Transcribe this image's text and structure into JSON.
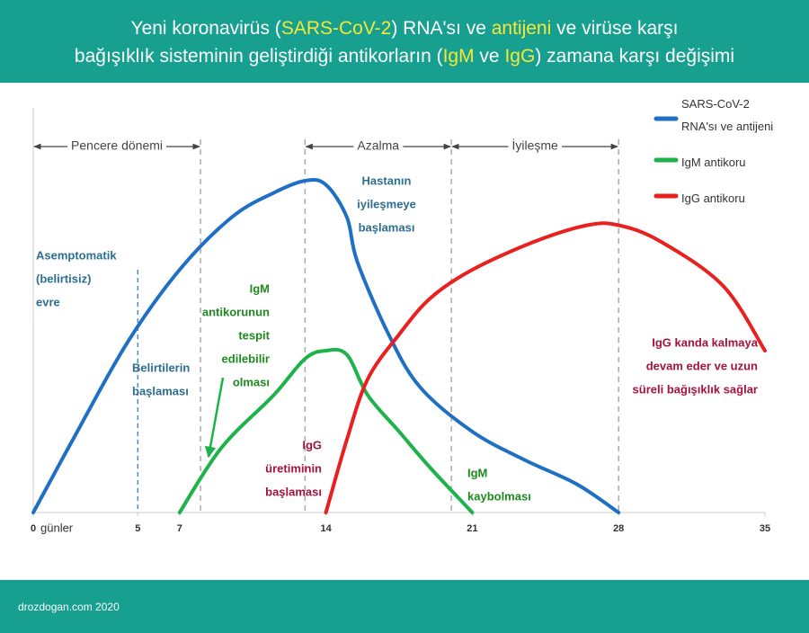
{
  "chart_data": {
    "type": "line",
    "title": {
      "lines": [
        [
          "Yeni koronavirüs (",
          "SARS-CoV-2",
          ") RNA'sı ve ",
          "antijeni",
          " ve virüse karşı"
        ],
        [
          "bağışıklık sisteminin geliştirdiği antikorların (",
          "IgM",
          " ve ",
          "IgG",
          ") zamana karşı değişimi"
        ]
      ]
    },
    "x_label": "günler",
    "xlim": [
      0,
      35
    ],
    "xticks": [
      0,
      5,
      7,
      14,
      21,
      28,
      35
    ],
    "ylim": [
      0,
      100
    ],
    "series": [
      {
        "name": "SARS-CoV-2 RNA'sı ve  antijeni",
        "color": "#1f6fc5",
        "x": [
          0,
          2,
          4.5,
          7,
          9.5,
          11.5,
          13,
          14,
          15,
          15.5,
          17,
          18.5,
          21,
          23.5,
          26,
          28
        ],
        "values": [
          0,
          19,
          42,
          60,
          73,
          79,
          82,
          81,
          73,
          62,
          44,
          31,
          20,
          13,
          7,
          0
        ]
      },
      {
        "name": "IgM antikoru",
        "color": "#1db34a",
        "x": [
          7,
          9,
          11.5,
          13,
          14,
          15,
          16,
          17.5,
          19,
          21
        ],
        "values": [
          0,
          16,
          29,
          38,
          40,
          39,
          29,
          20,
          11,
          0
        ]
      },
      {
        "name": "IgG antikoru",
        "color": "#e8201e",
        "x": [
          14,
          15,
          16,
          17.5,
          19,
          21,
          24,
          26.5,
          28,
          30,
          33,
          35
        ],
        "values": [
          0,
          18,
          33,
          44,
          53,
          60,
          67,
          71,
          71,
          67,
          56,
          40
        ]
      }
    ],
    "periods": [
      {
        "label": "Pencere dönemi",
        "start": 0,
        "end": 8
      },
      {
        "label": "Azalma",
        "start": 13,
        "end": 20
      },
      {
        "label": "İyileşme",
        "start": 20,
        "end": 28
      }
    ],
    "dividers": [
      8,
      13,
      20,
      28
    ],
    "symptom_line": 5,
    "annotations": [
      {
        "lines": [
          "Asemptomatik",
          "(belirtisiz)",
          "evre"
        ],
        "color": "#2c6e91"
      },
      {
        "lines": [
          "Belirtilerin",
          "başlaması"
        ],
        "color": "#2c6e91"
      },
      {
        "lines": [
          "Hastanın",
          "iyileşmeye",
          "başlaması"
        ],
        "color": "#2c6e91"
      },
      {
        "lines": [
          "IgM",
          "antikorunun",
          "tespit",
          "edilebilir",
          "olması"
        ],
        "color": "#1e8a1e"
      },
      {
        "lines": [
          "IgG",
          "üretiminin",
          "başlaması"
        ],
        "color": "#a3123c"
      },
      {
        "lines": [
          "IgM",
          "kaybolması"
        ],
        "color": "#1e8a1e"
      },
      {
        "lines": [
          "IgG kanda kalmaya",
          "devam eder ve uzun",
          "süreli bağışıklık sağlar"
        ],
        "color": "#a3123c"
      }
    ]
  },
  "footer": "drozdogan.com 2020"
}
